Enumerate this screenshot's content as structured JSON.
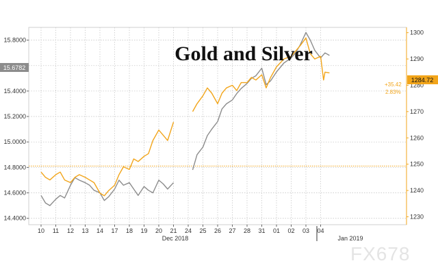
{
  "chart_data": {
    "type": "line",
    "title": "Gold and Silver",
    "x_ticks": [
      "10",
      "11",
      "12",
      "13",
      "14",
      "17",
      "18",
      "19",
      "20",
      "21",
      "24",
      "25",
      "26",
      "27",
      "28",
      "31",
      "01",
      "02",
      "03",
      "04"
    ],
    "x_group_labels": [
      "Dec 2018",
      "Jan 2019"
    ],
    "left_axis": {
      "ticks": [
        "15.8000",
        "15.6000",
        "15.4000",
        "15.2000",
        "15.0000",
        "14.8000",
        "14.6000",
        "14.4000"
      ],
      "ylim": [
        14.35,
        15.9
      ],
      "current_value": "15.6782"
    },
    "right_axis": {
      "ticks": [
        "1300",
        "1290",
        "1280",
        "1270",
        "1260",
        "1250",
        "1240",
        "1230"
      ],
      "ylim": [
        1227,
        1302
      ],
      "current_value": "1284.72",
      "change_abs": "+35.42",
      "change_pct": "2.83%",
      "reference_value": 1249.3
    },
    "series": [
      {
        "color": "#8c8c8c",
        "axis": "left",
        "x": [
          0,
          0.3,
          0.6,
          1,
          1.3,
          1.6,
          2,
          2.3,
          2.6,
          3,
          3.3,
          3.6,
          4,
          4.3,
          4.6,
          5,
          5.3,
          5.6,
          6,
          6.3,
          6.6,
          7,
          7.3,
          7.6,
          8,
          8.3,
          8.6,
          9,
          9.3,
          9.6,
          10,
          10.3,
          10.6,
          11,
          11.3,
          11.6,
          12,
          12.3,
          12.6,
          13,
          13.3,
          13.6,
          14,
          14.3,
          14.6,
          15,
          15.3,
          15.6,
          16,
          16.5,
          17,
          17.3,
          17.6,
          18,
          18.3,
          18.6,
          19,
          19.3,
          19.6
        ],
        "y": [
          14.58,
          14.52,
          14.5,
          14.55,
          14.58,
          14.56,
          14.66,
          14.72,
          14.7,
          14.68,
          14.66,
          14.62,
          14.6,
          14.54,
          14.57,
          14.63,
          14.7,
          14.66,
          14.68,
          14.63,
          14.58,
          14.65,
          14.62,
          14.6,
          14.7,
          14.67,
          14.63,
          14.68,
          null,
          null,
          null,
          14.78,
          14.9,
          14.96,
          15.05,
          15.1,
          15.16,
          15.26,
          15.3,
          15.33,
          15.38,
          15.42,
          15.46,
          15.5,
          15.52,
          15.58,
          15.45,
          15.48,
          15.55,
          15.62,
          15.66,
          15.7,
          15.76,
          15.86,
          15.8,
          15.72,
          15.66,
          15.7,
          15.68
        ]
      },
      {
        "color": "#f2a51a",
        "axis": "right",
        "x": [
          0,
          0.3,
          0.6,
          1,
          1.3,
          1.6,
          2,
          2.3,
          2.6,
          3,
          3.3,
          3.6,
          4,
          4.3,
          4.6,
          5,
          5.3,
          5.6,
          6,
          6.3,
          6.6,
          7,
          7.3,
          7.6,
          8,
          8.3,
          8.6,
          9,
          9.3,
          9.6,
          10,
          10.3,
          10.6,
          11,
          11.3,
          11.6,
          12,
          12.3,
          12.6,
          13,
          13.3,
          13.6,
          14,
          14.3,
          14.6,
          15,
          15.3,
          15.6,
          16,
          16.5,
          17,
          17.3,
          17.6,
          18,
          18.3,
          18.6,
          19,
          19.2,
          19.3,
          19.6
        ],
        "y": [
          1247,
          1245,
          1244,
          1246,
          1247,
          1244,
          1243,
          1245,
          1246,
          1245,
          1244,
          1243,
          1239,
          1238,
          1240,
          1242,
          1246,
          1249,
          1248,
          1252,
          1251,
          1253,
          1254,
          1259,
          1263,
          1261,
          1259,
          1266,
          null,
          null,
          null,
          1270,
          1273,
          1276,
          1279,
          1277,
          1273,
          1277,
          1279,
          1280,
          1278,
          1281,
          1281,
          1283,
          1282,
          1284,
          1279,
          1283,
          1287,
          1290,
          1291,
          1293,
          1295,
          1298,
          1292,
          1290,
          1291,
          1282,
          1285,
          1284.72
        ]
      }
    ],
    "legend": "none",
    "grid": true
  },
  "watermark": "FX678"
}
